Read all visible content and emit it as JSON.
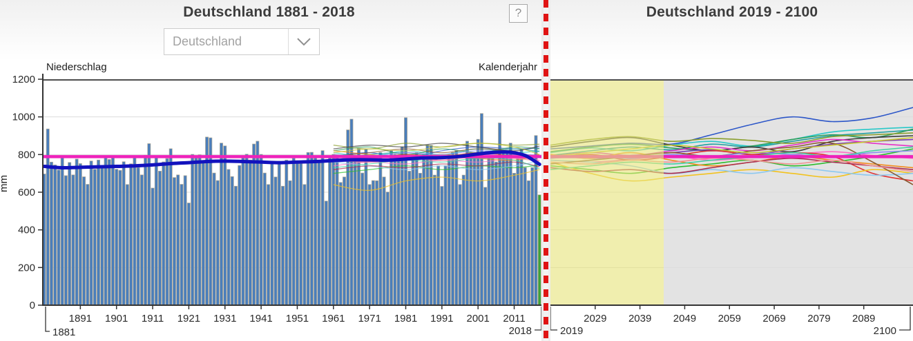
{
  "header": {
    "left_title": "Deutschland 1881 - 2018",
    "right_title": "Deutschland 2019 - 2100",
    "region_select": {
      "value": "Deutschland",
      "chevron_icon": "chevron-down-icon"
    },
    "help_label": "?"
  },
  "axis": {
    "y_caption": "Niederschlag",
    "x_caption": "Kalenderjahr",
    "y_unit": "mm",
    "y_ticks": [
      1200,
      1000,
      800,
      600,
      400,
      200,
      0
    ],
    "x_ticks_left": [
      1891,
      1901,
      1911,
      1921,
      1931,
      1941,
      1951,
      1961,
      1971,
      1981,
      1991,
      2001,
      2011
    ],
    "x_ticks_right": [
      2029,
      2039,
      2049,
      2059,
      2069,
      2079,
      2089
    ],
    "corner_left": "1881",
    "corner_mid_left": "2018",
    "corner_mid_right": "2019",
    "corner_right": "2100"
  },
  "colors": {
    "bar_fill": "#4a7ebb",
    "bar_stroke": "#b3aa95",
    "last_bar_fill": "#3fa13a",
    "smoothed_line": "#1212bd",
    "reference_line": "#ee22bb",
    "divider_red": "#e01313",
    "near_term_region": "rgba(230,227,125,0.62)",
    "long_term_region": "#e3e3e3",
    "grid": "#dcdcdc",
    "axis": "#333333"
  },
  "chart_data": {
    "type": "bar",
    "title": "Niederschlag Deutschland, Kalenderjahr (mm)",
    "ylabel": "mm",
    "ylim": [
      0,
      1200
    ],
    "grid": "horizontal, every 200 mm",
    "legend": "none",
    "historical_bars": {
      "type": "bar",
      "start_year": 1881,
      "end_year": 2018,
      "note": "last year 2018 drawn green",
      "values": [
        697,
        936,
        760,
        745,
        718,
        792,
        688,
        758,
        692,
        776,
        752,
        682,
        642,
        766,
        722,
        771,
        737,
        788,
        774,
        786,
        722,
        716,
        762,
        641,
        751,
        784,
        731,
        692,
        796,
        858,
        622,
        789,
        712,
        761,
        779,
        831,
        678,
        692,
        642,
        688,
        543,
        801,
        782,
        799,
        762,
        893,
        889,
        702,
        662,
        861,
        846,
        721,
        683,
        632,
        742,
        791,
        802,
        771,
        856,
        871,
        801,
        702,
        641,
        762,
        681,
        761,
        632,
        771,
        661,
        781,
        761,
        752,
        641,
        811,
        812,
        791,
        762,
        821,
        553,
        791,
        801,
        782,
        652,
        681,
        931,
        988,
        781,
        831,
        702,
        828,
        641,
        662,
        661,
        811,
        681,
        601,
        821,
        801,
        799,
        841,
        996,
        712,
        791,
        811,
        701,
        801,
        851,
        849,
        691,
        741,
        631,
        741,
        801,
        811,
        821,
        641,
        691,
        871,
        811,
        791,
        881,
        1018,
        626,
        781,
        779,
        761,
        968,
        811,
        809,
        861,
        701,
        791,
        831,
        731,
        661,
        731,
        901,
        586
      ]
    },
    "smoothed_line": {
      "type": "line",
      "points": [
        [
          1881,
          737
        ],
        [
          1886,
          730
        ],
        [
          1891,
          732
        ],
        [
          1896,
          735
        ],
        [
          1901,
          737
        ],
        [
          1906,
          740
        ],
        [
          1911,
          745
        ],
        [
          1916,
          752
        ],
        [
          1921,
          757
        ],
        [
          1926,
          763
        ],
        [
          1931,
          765
        ],
        [
          1936,
          763
        ],
        [
          1941,
          760
        ],
        [
          1946,
          757
        ],
        [
          1951,
          760
        ],
        [
          1956,
          763
        ],
        [
          1961,
          768
        ],
        [
          1966,
          772
        ],
        [
          1971,
          772
        ],
        [
          1976,
          770
        ],
        [
          1981,
          776
        ],
        [
          1986,
          782
        ],
        [
          1991,
          784
        ],
        [
          1996,
          790
        ],
        [
          2001,
          803
        ],
        [
          2006,
          812
        ],
        [
          2010,
          812
        ],
        [
          2014,
          795
        ],
        [
          2018,
          748
        ]
      ]
    },
    "reference_line": {
      "value": 789,
      "span": "full width 1881-2100"
    },
    "regions": [
      {
        "name": "near-term-projection",
        "from": 2019,
        "to": 2044,
        "style": "pale-yellow overlay"
      },
      {
        "name": "long-term-projection",
        "from": 2044,
        "to": 2100,
        "style": "light-gray"
      }
    ],
    "ensemble_colors": [
      "#2c56c8",
      "#28c8c8",
      "#1f9e9e",
      "#2e9e5b",
      "#8a9e2e",
      "#3a3a3a",
      "#7a3ab4",
      "#e431c8",
      "#ff6ec7",
      "#e03131",
      "#2ebc2e",
      "#f28c1e",
      "#f2c21e",
      "#8cc8f0",
      "#8a5a32",
      "#a82e50",
      "#f09090",
      "#8c8cf0",
      "#40d0a0",
      "#c8c832"
    ],
    "historical_ensemble": {
      "type": "line",
      "x": [
        1961,
        1971,
        1981,
        1991,
        2001,
        2011,
        2018
      ],
      "series": [
        [
          790,
          810,
          780,
          820,
          840,
          830,
          835
        ],
        [
          810,
          790,
          820,
          800,
          830,
          810,
          820
        ],
        [
          770,
          800,
          810,
          790,
          810,
          830,
          815
        ],
        [
          820,
          840,
          800,
          830,
          810,
          840,
          830
        ],
        [
          850,
          830,
          860,
          840,
          860,
          850,
          855
        ],
        [
          830,
          850,
          840,
          860,
          840,
          820,
          845
        ],
        [
          760,
          780,
          770,
          790,
          780,
          800,
          795
        ],
        [
          780,
          760,
          790,
          770,
          800,
          790,
          800
        ],
        [
          740,
          760,
          750,
          770,
          760,
          780,
          770
        ],
        [
          800,
          780,
          800,
          790,
          810,
          790,
          785
        ],
        [
          700,
          720,
          740,
          720,
          740,
          730,
          745
        ],
        [
          820,
          800,
          780,
          800,
          780,
          770,
          800
        ],
        [
          640,
          610,
          660,
          680,
          660,
          690,
          720
        ],
        [
          760,
          740,
          720,
          740,
          720,
          740,
          765
        ],
        [
          790,
          810,
          830,
          810,
          830,
          810,
          755
        ],
        [
          720,
          740,
          730,
          750,
          740,
          760,
          735
        ],
        [
          770,
          760,
          780,
          770,
          790,
          780,
          765
        ],
        [
          800,
          790,
          810,
          800,
          820,
          810,
          790
        ],
        [
          730,
          750,
          770,
          760,
          780,
          770,
          725
        ],
        [
          810,
          830,
          820,
          840,
          860,
          840,
          800
        ]
      ]
    },
    "projection_ensemble": {
      "type": "line",
      "x": [
        2019,
        2028,
        2037,
        2046,
        2055,
        2064,
        2073,
        2082,
        2091,
        2100
      ],
      "series": [
        [
          830,
          845,
          860,
          855,
          905,
          960,
          1000,
          975,
          995,
          1050
        ],
        [
          810,
          835,
          820,
          850,
          870,
          845,
          880,
          920,
          935,
          945
        ],
        [
          795,
          820,
          840,
          825,
          855,
          840,
          870,
          900,
          915,
          930
        ],
        [
          815,
          840,
          855,
          835,
          820,
          845,
          880,
          905,
          890,
          935
        ],
        [
          850,
          880,
          895,
          870,
          885,
          875,
          860,
          895,
          905,
          915
        ],
        [
          840,
          870,
          890,
          850,
          820,
          840,
          815,
          870,
          890,
          900
        ],
        [
          800,
          780,
          795,
          810,
          825,
          800,
          830,
          855,
          870,
          880
        ],
        [
          790,
          810,
          795,
          820,
          840,
          820,
          850,
          880,
          860,
          845
        ],
        [
          770,
          760,
          775,
          790,
          770,
          785,
          800,
          815,
          795,
          780
        ],
        [
          780,
          800,
          770,
          790,
          820,
          800,
          810,
          790,
          700,
          660
        ],
        [
          740,
          720,
          700,
          730,
          750,
          770,
          740,
          760,
          790,
          830
        ],
        [
          800,
          780,
          810,
          770,
          740,
          760,
          790,
          770,
          750,
          730
        ],
        [
          760,
          700,
          660,
          680,
          700,
          720,
          700,
          680,
          720,
          700
        ],
        [
          770,
          760,
          740,
          700,
          720,
          700,
          730,
          710,
          690,
          700
        ],
        [
          750,
          770,
          790,
          810,
          790,
          820,
          840,
          860,
          760,
          640
        ],
        [
          730,
          710,
          720,
          700,
          730,
          760,
          780,
          760,
          740,
          720
        ],
        [
          760,
          750,
          770,
          760,
          780,
          770,
          750,
          770,
          740,
          710
        ],
        [
          780,
          790,
          780,
          800,
          790,
          810,
          800,
          790,
          810,
          820
        ],
        [
          720,
          740,
          760,
          750,
          770,
          790,
          810,
          790,
          820,
          840
        ],
        [
          790,
          810,
          830,
          850,
          830,
          810,
          830,
          850,
          870,
          890
        ]
      ]
    }
  }
}
